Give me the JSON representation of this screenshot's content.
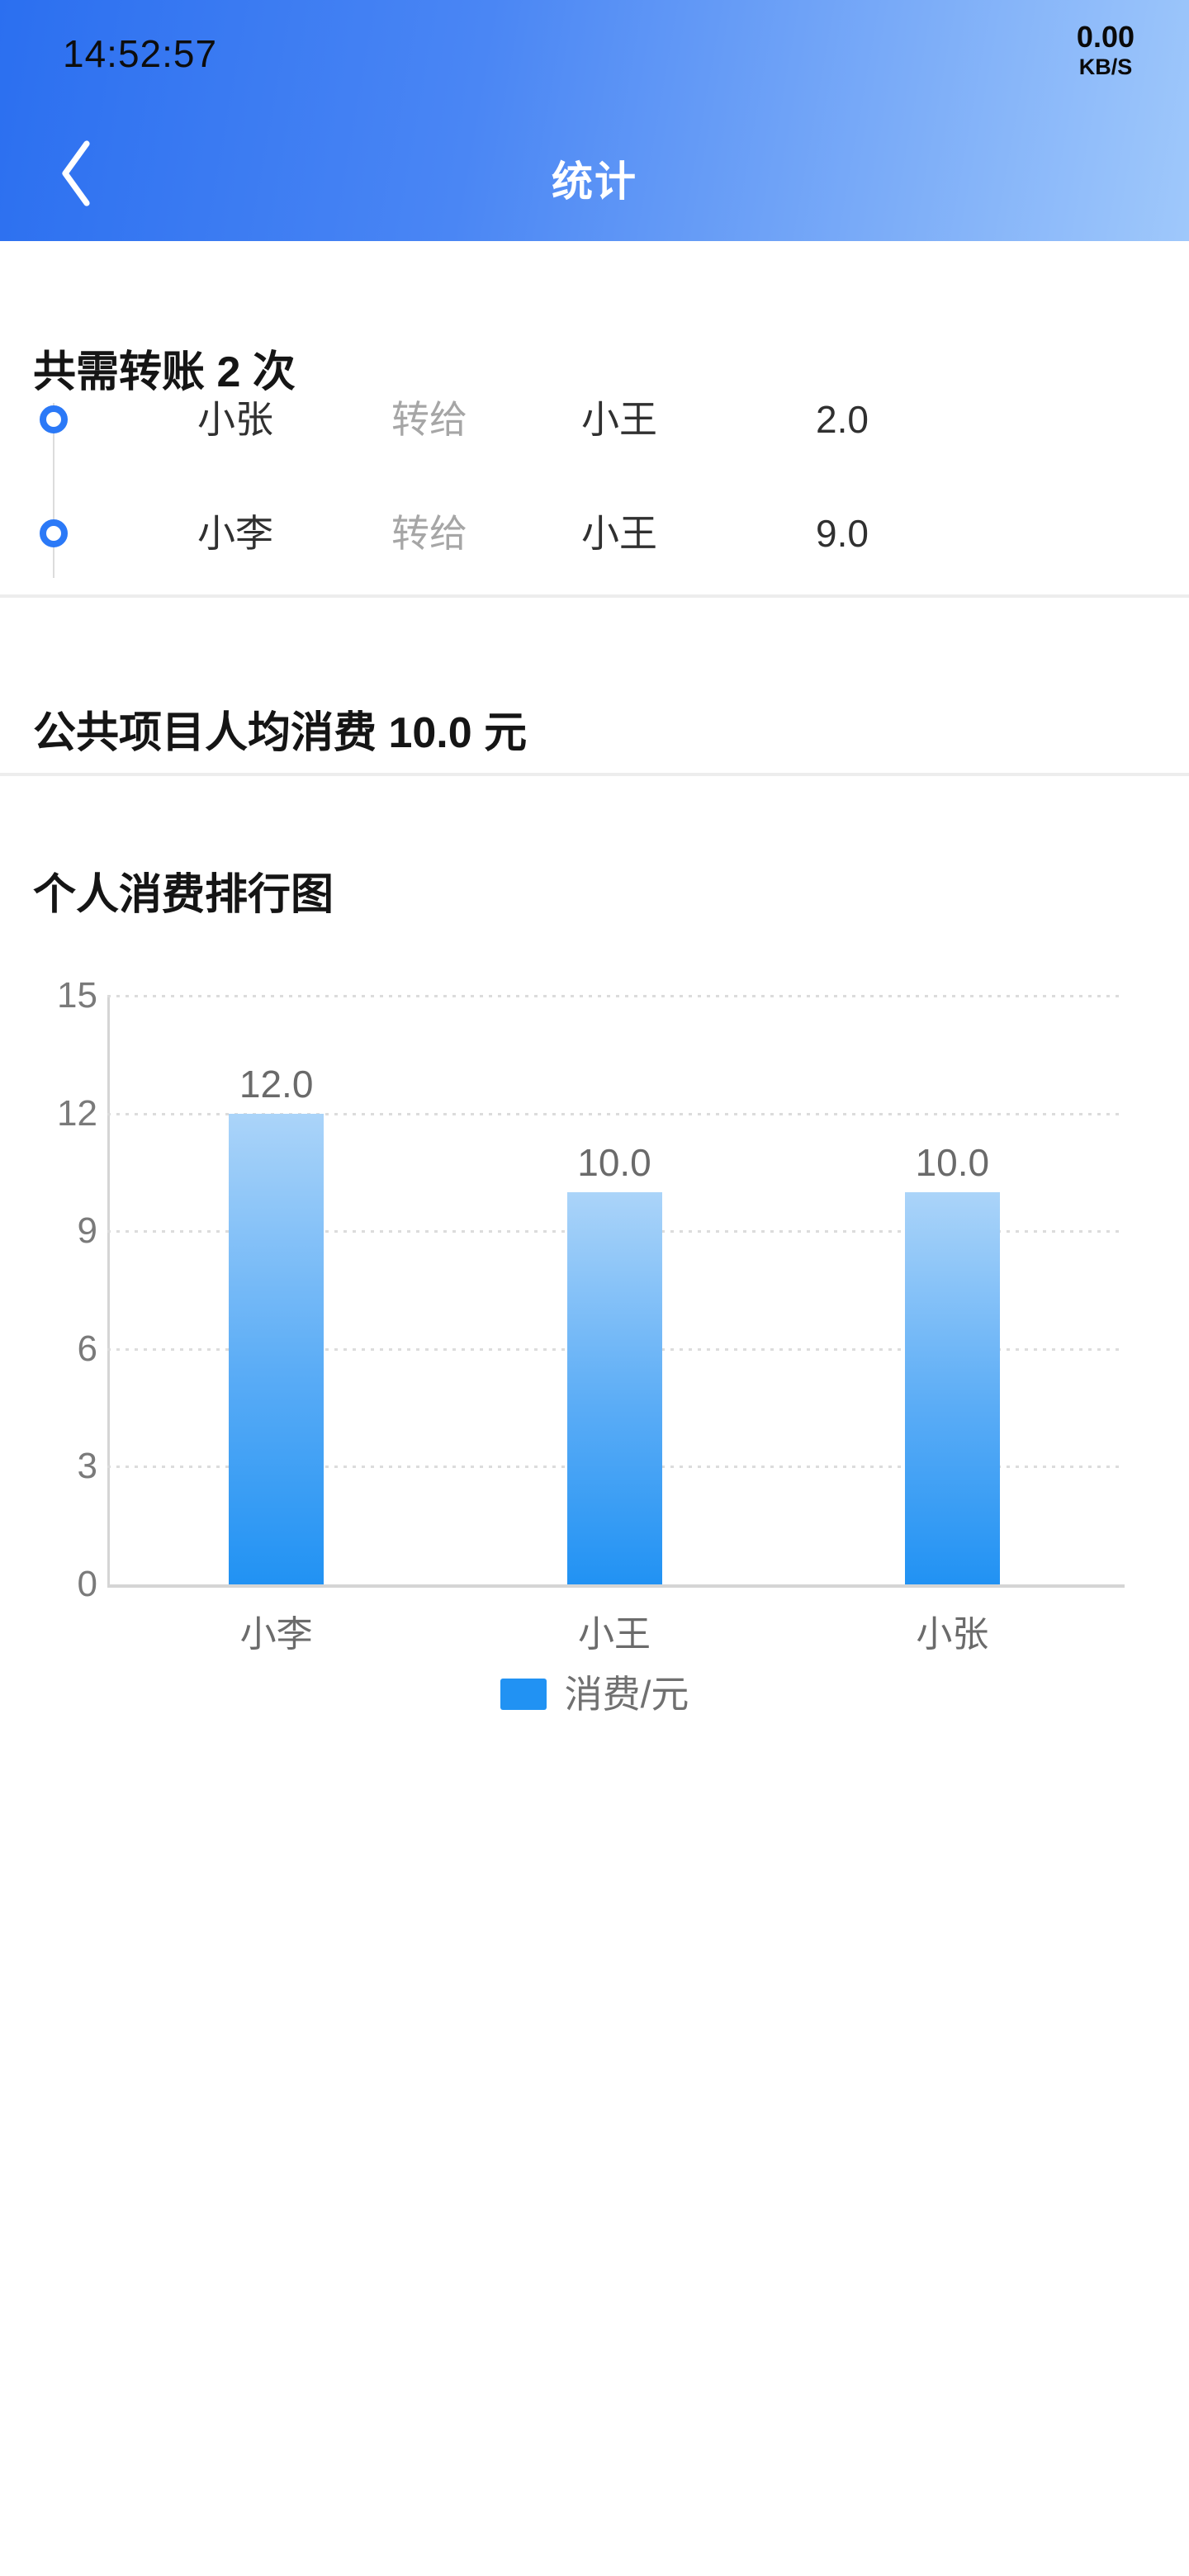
{
  "status_bar": {
    "time": "14:52:57",
    "net_speed_value": "0.00",
    "net_speed_unit": "KB/S"
  },
  "nav": {
    "title": "统计"
  },
  "transfers": {
    "heading": "共需转账 2 次",
    "items": [
      {
        "from": "小张",
        "verb": "转给",
        "to": "小王",
        "amount": "2.0"
      },
      {
        "from": "小李",
        "verb": "转给",
        "to": "小王",
        "amount": "9.0"
      }
    ]
  },
  "average": {
    "text": "公共项目人均消费 10.0 元"
  },
  "chart_section": {
    "heading": "个人消费排行图"
  },
  "chart_data": {
    "type": "bar",
    "title": "个人消费排行图",
    "categories": [
      "小李",
      "小王",
      "小张"
    ],
    "values": [
      12.0,
      10.0,
      10.0
    ],
    "value_labels": [
      "12.0",
      "10.0",
      "10.0"
    ],
    "ylim": [
      0,
      15
    ],
    "yticks": [
      0,
      3,
      6,
      9,
      12,
      15
    ],
    "xlabel": "",
    "ylabel": "",
    "grid": "horizontal-dotted",
    "legend": [
      "消费/元"
    ],
    "legend_position": "bottom"
  },
  "colors": {
    "header_gradient_start": "#2b6ff0",
    "header_gradient_end": "#9fc8fb",
    "timeline_dot_blue": "#2b79f7",
    "bar_gradient_top": "#abd4f9",
    "bar_gradient_bottom": "#2192f3",
    "legend_swatch": "#2192f3"
  }
}
